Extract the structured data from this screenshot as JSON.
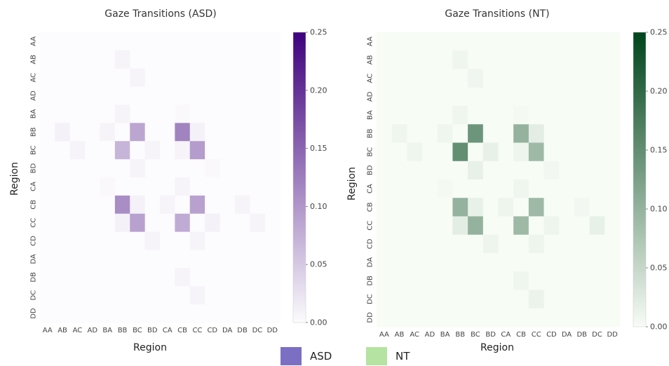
{
  "chart_data": [
    {
      "type": "heatmap",
      "title": "Gaze Transitions (ASD)",
      "xlabel": "Region",
      "ylabel": "Region",
      "labels": [
        "AA",
        "AB",
        "AC",
        "AD",
        "BA",
        "BB",
        "BC",
        "BD",
        "CA",
        "CB",
        "CC",
        "CD",
        "DA",
        "DB",
        "DC",
        "DD"
      ],
      "colormap": [
        "#fcfbfd",
        "#3f007d"
      ],
      "vmin": 0,
      "vmax": 0.25,
      "colorbar_ticks": [
        "0.00",
        "0.05",
        "0.10",
        "0.15",
        "0.20",
        "0.25"
      ],
      "matrix": [
        [
          0,
          0,
          0,
          0,
          0,
          0,
          0,
          0,
          0,
          0,
          0,
          0,
          0,
          0,
          0,
          0
        ],
        [
          0,
          0,
          0,
          0,
          0,
          0.008,
          0,
          0,
          0,
          0,
          0,
          0,
          0,
          0,
          0,
          0
        ],
        [
          0,
          0,
          0,
          0,
          0,
          0,
          0.008,
          0,
          0,
          0,
          0,
          0,
          0,
          0,
          0,
          0
        ],
        [
          0,
          0,
          0,
          0,
          0,
          0,
          0,
          0,
          0,
          0,
          0,
          0,
          0,
          0,
          0,
          0
        ],
        [
          0,
          0,
          0,
          0,
          0,
          0.008,
          0,
          0,
          0,
          0.003,
          0,
          0,
          0,
          0,
          0,
          0
        ],
        [
          0,
          0.01,
          0,
          0,
          0.008,
          0,
          0.085,
          0,
          0,
          0.12,
          0.01,
          0,
          0,
          0,
          0,
          0
        ],
        [
          0,
          0,
          0.008,
          0,
          0,
          0.07,
          0,
          0.008,
          0,
          0.008,
          0.095,
          0,
          0,
          0,
          0,
          0
        ],
        [
          0,
          0,
          0,
          0,
          0,
          0,
          0.008,
          0,
          0,
          0,
          0,
          0.003,
          0,
          0,
          0,
          0
        ],
        [
          0,
          0,
          0,
          0,
          0.003,
          0,
          0,
          0,
          0,
          0.008,
          0,
          0,
          0,
          0,
          0,
          0
        ],
        [
          0,
          0,
          0,
          0,
          0,
          0.11,
          0.01,
          0,
          0.008,
          0,
          0.09,
          0,
          0,
          0.008,
          0,
          0
        ],
        [
          0,
          0,
          0,
          0,
          0,
          0.01,
          0.09,
          0,
          0,
          0.08,
          0,
          0.01,
          0,
          0,
          0.008,
          0
        ],
        [
          0,
          0,
          0,
          0,
          0,
          0,
          0,
          0.008,
          0,
          0,
          0.008,
          0,
          0,
          0,
          0,
          0
        ],
        [
          0,
          0,
          0,
          0,
          0,
          0,
          0,
          0,
          0,
          0,
          0,
          0,
          0,
          0,
          0,
          0
        ],
        [
          0,
          0,
          0,
          0,
          0,
          0,
          0,
          0,
          0,
          0.008,
          0,
          0,
          0,
          0,
          0,
          0
        ],
        [
          0,
          0,
          0,
          0,
          0,
          0,
          0,
          0,
          0,
          0,
          0.008,
          0,
          0,
          0,
          0,
          0
        ],
        [
          0,
          0,
          0,
          0,
          0,
          0,
          0,
          0,
          0,
          0,
          0,
          0,
          0,
          0,
          0,
          0
        ]
      ]
    },
    {
      "type": "heatmap",
      "title": "Gaze Transitions (NT)",
      "xlabel": "Region",
      "ylabel": "Region",
      "labels": [
        "AA",
        "AB",
        "AC",
        "AD",
        "BA",
        "BB",
        "BC",
        "BD",
        "CA",
        "CB",
        "CC",
        "CD",
        "DA",
        "DB",
        "DC",
        "DD"
      ],
      "colormap": [
        "#f7fcf5",
        "#00441b"
      ],
      "vmin": 0,
      "vmax": 0.25,
      "colorbar_ticks": [
        "0.00",
        "0.05",
        "0.10",
        "0.15",
        "0.20",
        "0.25"
      ],
      "matrix": [
        [
          0,
          0,
          0,
          0,
          0,
          0,
          0,
          0,
          0,
          0,
          0,
          0,
          0,
          0,
          0,
          0
        ],
        [
          0,
          0,
          0,
          0,
          0,
          0.008,
          0,
          0,
          0,
          0,
          0,
          0,
          0,
          0,
          0,
          0
        ],
        [
          0,
          0,
          0,
          0,
          0,
          0,
          0.008,
          0,
          0,
          0,
          0,
          0,
          0,
          0,
          0,
          0
        ],
        [
          0,
          0,
          0,
          0,
          0,
          0,
          0,
          0,
          0,
          0,
          0,
          0,
          0,
          0,
          0,
          0
        ],
        [
          0,
          0,
          0,
          0,
          0,
          0.008,
          0,
          0,
          0,
          0.003,
          0,
          0,
          0,
          0,
          0,
          0
        ],
        [
          0,
          0.008,
          0,
          0,
          0.008,
          0,
          0.14,
          0,
          0,
          0.1,
          0.02,
          0,
          0,
          0,
          0,
          0
        ],
        [
          0,
          0,
          0.008,
          0,
          0,
          0.15,
          0,
          0.015,
          0,
          0.01,
          0.09,
          0,
          0,
          0,
          0,
          0
        ],
        [
          0,
          0,
          0,
          0,
          0,
          0,
          0.015,
          0,
          0,
          0,
          0,
          0.005,
          0,
          0,
          0,
          0
        ],
        [
          0,
          0,
          0,
          0,
          0.003,
          0,
          0,
          0,
          0,
          0.008,
          0,
          0,
          0,
          0,
          0,
          0
        ],
        [
          0,
          0,
          0,
          0,
          0,
          0.1,
          0.015,
          0,
          0.01,
          0,
          0.09,
          0,
          0,
          0.005,
          0,
          0
        ],
        [
          0,
          0,
          0,
          0,
          0,
          0.02,
          0.1,
          0,
          0,
          0.09,
          0,
          0.01,
          0,
          0,
          0.015,
          0
        ],
        [
          0,
          0,
          0,
          0,
          0,
          0,
          0,
          0.01,
          0,
          0,
          0.01,
          0,
          0,
          0,
          0,
          0
        ],
        [
          0,
          0,
          0,
          0,
          0,
          0,
          0,
          0,
          0,
          0,
          0,
          0,
          0,
          0,
          0,
          0
        ],
        [
          0,
          0,
          0,
          0,
          0,
          0,
          0,
          0,
          0,
          0.008,
          0,
          0,
          0,
          0,
          0,
          0
        ],
        [
          0,
          0,
          0,
          0,
          0,
          0,
          0,
          0,
          0,
          0,
          0.012,
          0,
          0,
          0,
          0,
          0
        ],
        [
          0,
          0,
          0,
          0,
          0,
          0,
          0,
          0,
          0,
          0,
          0,
          0,
          0,
          0,
          0,
          0
        ]
      ]
    }
  ],
  "legend": [
    {
      "label": "ASD",
      "color": "#7b6fc4"
    },
    {
      "label": "NT",
      "color": "#b5e3a1"
    }
  ]
}
